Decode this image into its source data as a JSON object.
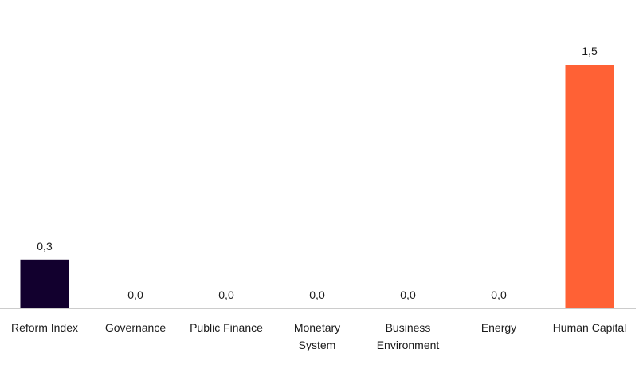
{
  "chart_data": {
    "type": "bar",
    "categories": [
      [
        "Reform Index"
      ],
      [
        "Governance"
      ],
      [
        "Public Finance"
      ],
      [
        "Monetary",
        "System"
      ],
      [
        "Business",
        "Environment"
      ],
      [
        "Energy"
      ],
      [
        "Human Capital"
      ]
    ],
    "values": [
      0.3,
      0.0,
      0.0,
      0.0,
      0.0,
      0.0,
      1.5
    ],
    "value_labels": [
      "0,3",
      "0,0",
      "0,0",
      "0,0",
      "0,0",
      "0,0",
      "1,5"
    ],
    "bar_colors": [
      "#12002e",
      "#12002e",
      "#12002e",
      "#12002e",
      "#12002e",
      "#12002e",
      "#ff6135"
    ],
    "ylim": [
      0,
      1.5
    ],
    "grid": false,
    "axis_color": "#999999"
  }
}
